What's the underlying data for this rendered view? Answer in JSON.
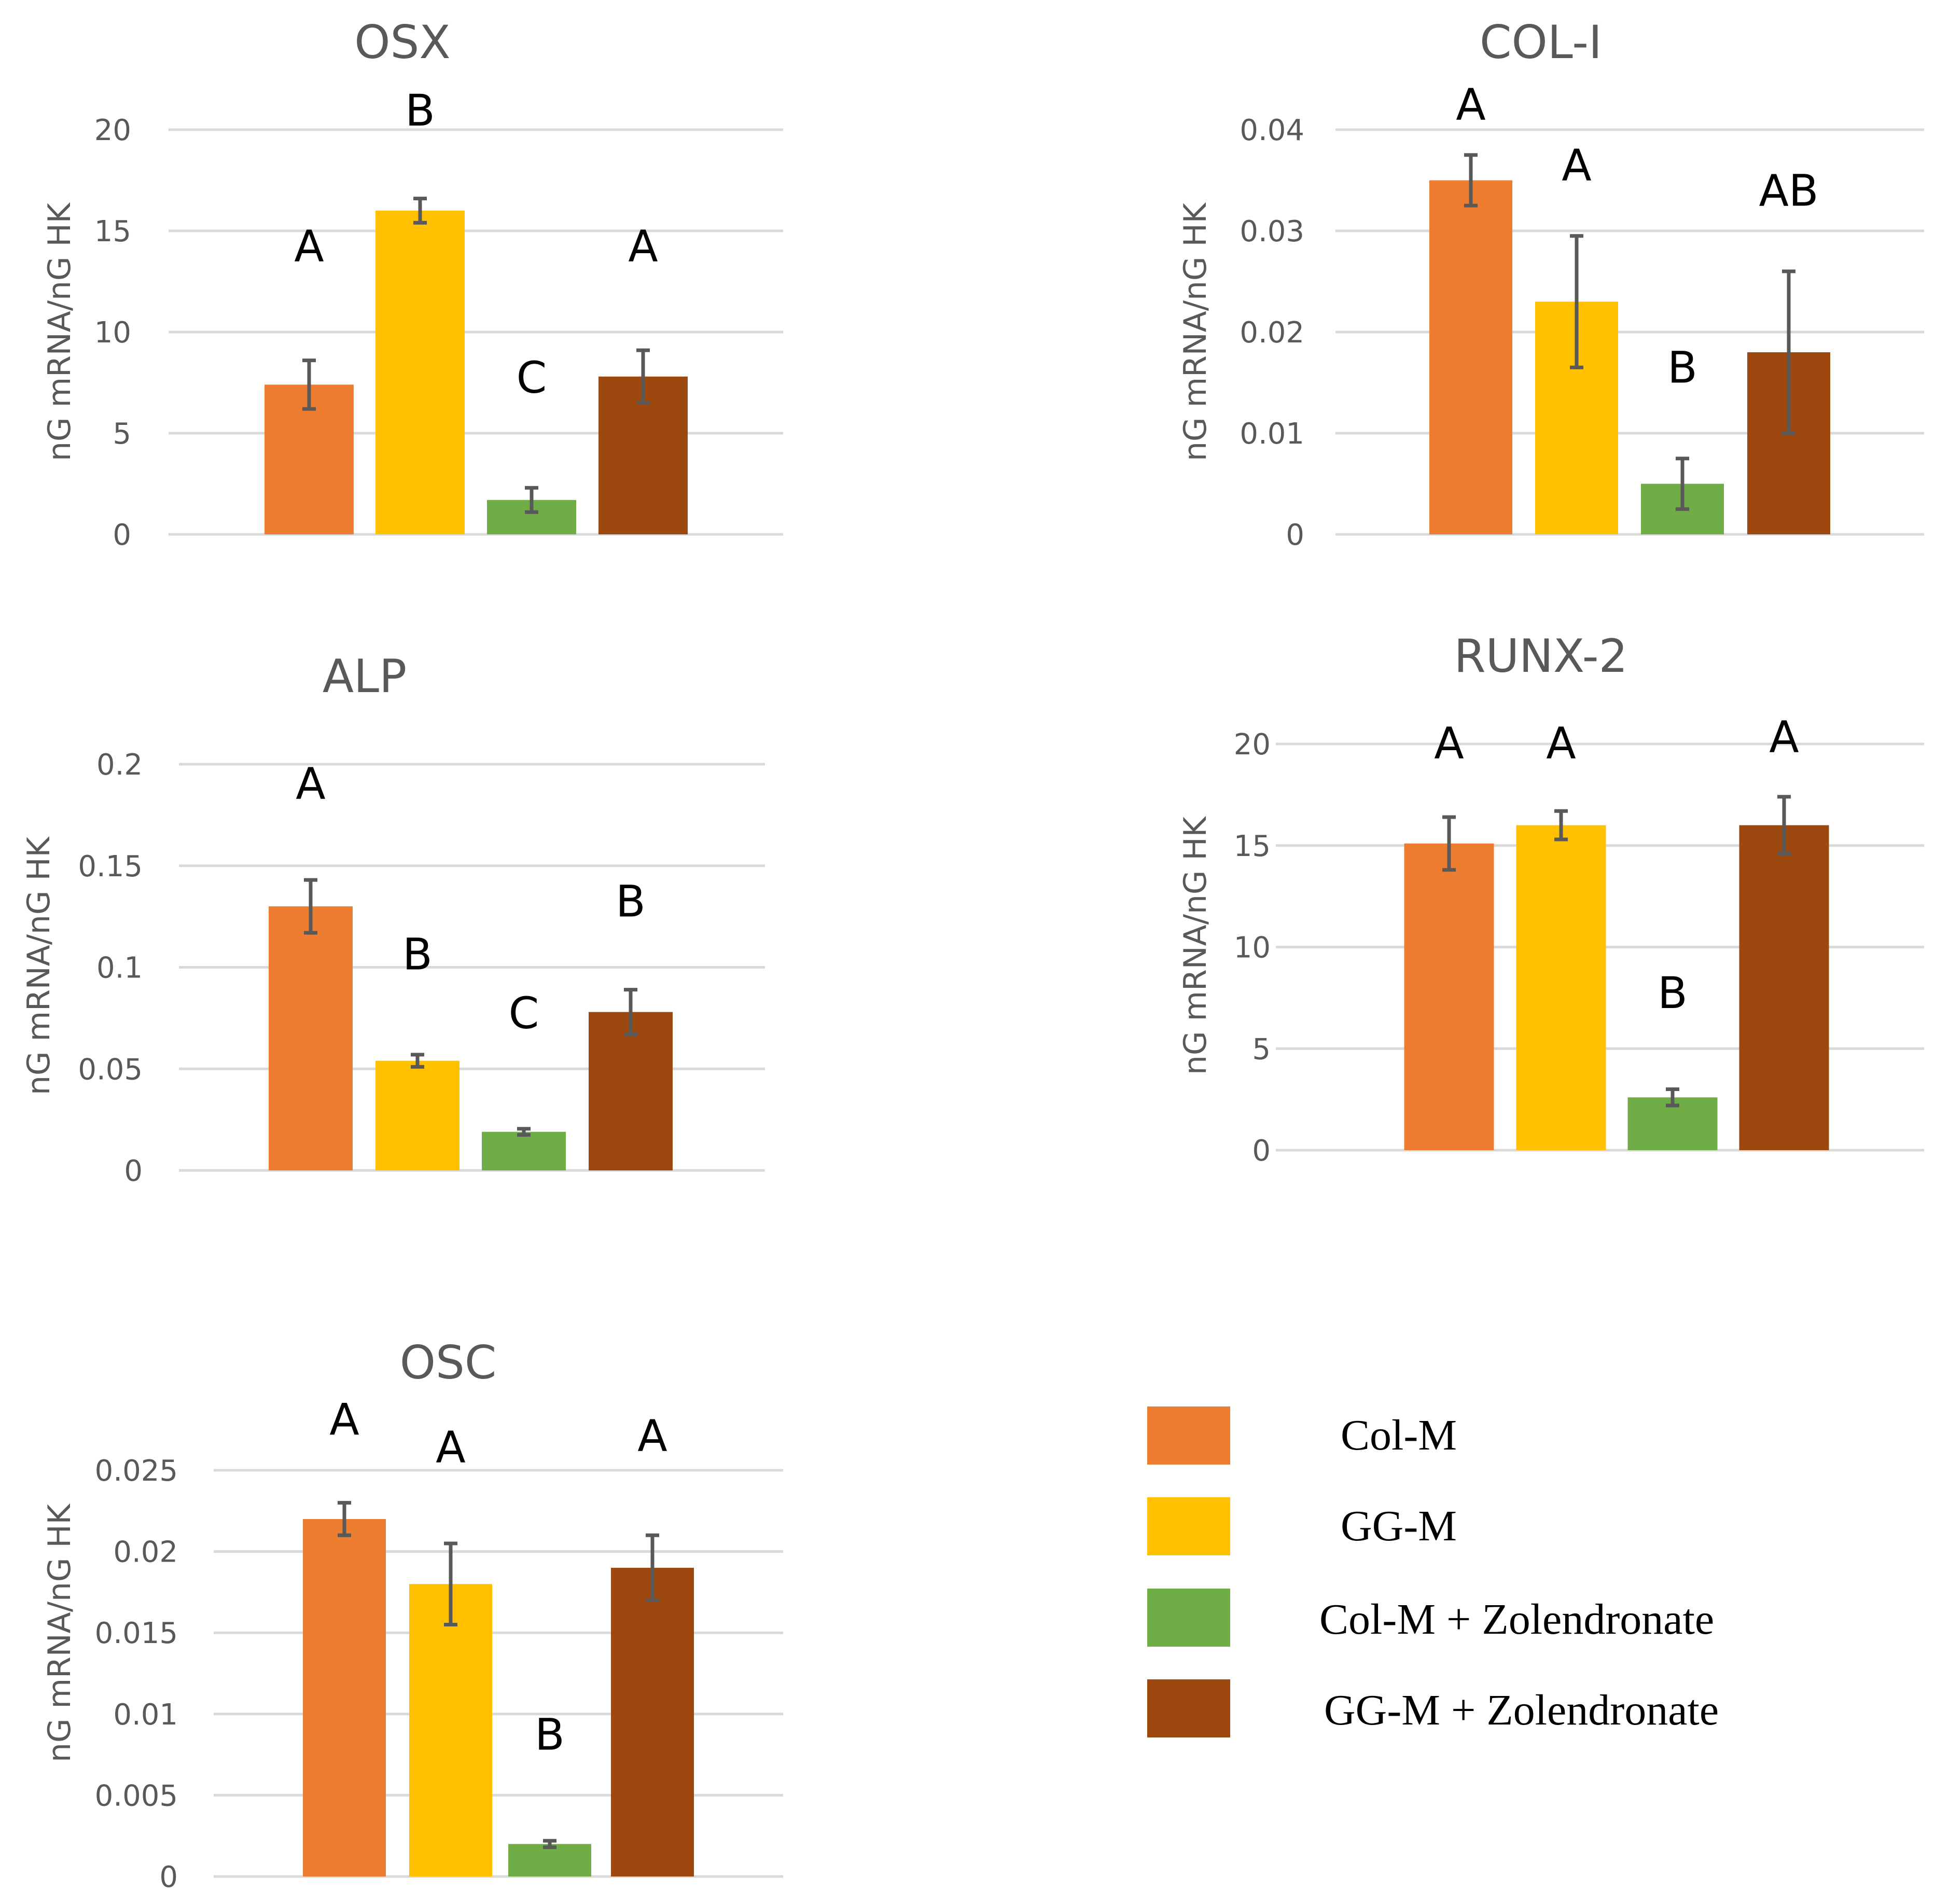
{
  "chart_data": [
    {
      "type": "bar",
      "title": "OSX",
      "ylabel": "nG mRNA/nG HK",
      "ylim": [
        0,
        20
      ],
      "yticks": [
        0,
        5,
        10,
        15,
        20
      ],
      "ytick_labels": [
        "0",
        "5",
        "10",
        "15",
        "20"
      ],
      "categories": [
        "Col-M",
        "GG-M",
        "Col-M + Zolendronate",
        "GG-M + Zolendronate"
      ],
      "values": [
        7.4,
        16.0,
        1.7,
        7.8
      ],
      "errors": [
        1.2,
        0.6,
        0.6,
        1.3
      ],
      "significance": [
        "A",
        "B",
        "C",
        "A"
      ],
      "sig_y": [
        13.5,
        20.2,
        7.0,
        13.5
      ]
    },
    {
      "type": "bar",
      "title": "COL-I",
      "ylabel": "nG mRNA/nG HK",
      "ylim": [
        0,
        0.04
      ],
      "yticks": [
        0,
        0.01,
        0.02,
        0.03,
        0.04
      ],
      "ytick_labels": [
        "0",
        "0.01",
        "0.02",
        "0.03",
        "0.04"
      ],
      "categories": [
        "Col-M",
        "GG-M",
        "Col-M + Zolendronate",
        "GG-M + Zolendronate"
      ],
      "values": [
        0.035,
        0.023,
        0.005,
        0.018
      ],
      "errors": [
        0.0025,
        0.0065,
        0.0025,
        0.008
      ],
      "significance": [
        "A",
        "A",
        "B",
        "AB"
      ],
      "sig_y": [
        0.041,
        0.035,
        0.015,
        0.0325
      ]
    },
    {
      "type": "bar",
      "title": "ALP",
      "ylabel": "nG mRNA/nG HK",
      "ylim": [
        0,
        0.2
      ],
      "yticks": [
        0,
        0.05,
        0.1,
        0.15,
        0.2
      ],
      "ytick_labels": [
        "0",
        "0.05",
        "0.1",
        "0.15",
        "0.2"
      ],
      "categories": [
        "Col-M",
        "GG-M",
        "Col-M + Zolendronate",
        "GG-M + Zolendronate"
      ],
      "values": [
        0.13,
        0.054,
        0.019,
        0.078
      ],
      "errors": [
        0.013,
        0.003,
        0.0015,
        0.011
      ],
      "significance": [
        "A",
        "B",
        "C",
        "B"
      ],
      "sig_y": [
        0.183,
        0.099,
        0.07,
        0.125
      ]
    },
    {
      "type": "bar",
      "title": "RUNX-2",
      "ylabel": "nG mRNA/nG HK",
      "ylim": [
        0,
        20
      ],
      "yticks": [
        0,
        5,
        10,
        15,
        20
      ],
      "ytick_labels": [
        "0",
        "5",
        "10",
        "15",
        "20"
      ],
      "categories": [
        "Col-M",
        "GG-M",
        "Col-M + Zolendronate",
        "GG-M + Zolendronate"
      ],
      "values": [
        15.1,
        16.0,
        2.6,
        16.0
      ],
      "errors": [
        1.3,
        0.7,
        0.4,
        1.4
      ],
      "significance": [
        "A",
        "A",
        "B",
        "A"
      ],
      "sig_y": [
        19.3,
        19.3,
        7.0,
        19.6
      ]
    },
    {
      "type": "bar",
      "title": "OSC",
      "ylabel": "nG mRNA/nG HK",
      "ylim": [
        0,
        0.025
      ],
      "yticks": [
        0,
        0.005,
        0.01,
        0.015,
        0.02,
        0.025
      ],
      "ytick_labels": [
        "0",
        "0.005",
        "0.01",
        "0.015",
        "0.02",
        "0.025"
      ],
      "categories": [
        "Col-M",
        "GG-M",
        "Col-M + Zolendronate",
        "GG-M + Zolendronate"
      ],
      "values": [
        0.022,
        0.018,
        0.002,
        0.019
      ],
      "errors": [
        0.001,
        0.0025,
        0.0002,
        0.002
      ],
      "significance": [
        "A",
        "A",
        "B",
        "A"
      ],
      "sig_y": [
        0.0272,
        0.0255,
        0.0078,
        0.0262
      ]
    }
  ],
  "legend": {
    "entries": [
      {
        "label": "Col-M",
        "color": "#ED7D31"
      },
      {
        "label": "GG-M",
        "color": "#FFC000"
      },
      {
        "label": "Col-M + Zolendronate",
        "color": "#70AD47"
      },
      {
        "label": "GG-M + Zolendronate",
        "color": "#9C480E"
      }
    ]
  },
  "colors": {
    "grid": "#d9d9d9",
    "axis_text": "#595959",
    "error_bar": "#595959"
  }
}
